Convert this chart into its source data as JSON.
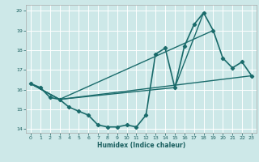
{
  "xlabel": "Humidex (Indice chaleur)",
  "ylabel": "",
  "xlim": [
    -0.5,
    23.5
  ],
  "ylim": [
    13.8,
    20.3
  ],
  "yticks": [
    14,
    15,
    16,
    17,
    18,
    19,
    20
  ],
  "xticks": [
    0,
    1,
    2,
    3,
    4,
    5,
    6,
    7,
    8,
    9,
    10,
    11,
    12,
    13,
    14,
    15,
    16,
    17,
    18,
    19,
    20,
    21,
    22,
    23
  ],
  "background_color": "#cde8e8",
  "grid_color": "#ffffff",
  "line_color": "#1a6b6b",
  "lines": [
    {
      "x": [
        0,
        1,
        2,
        3,
        4,
        5,
        6,
        7,
        8,
        9,
        10,
        11,
        12,
        13,
        14,
        15,
        16,
        17,
        18,
        19,
        20,
        21,
        22,
        23
      ],
      "y": [
        16.3,
        16.1,
        15.6,
        15.5,
        15.1,
        14.9,
        14.7,
        14.2,
        14.1,
        14.1,
        14.2,
        14.1,
        14.7,
        17.8,
        18.1,
        16.1,
        18.2,
        19.3,
        19.9,
        19.0,
        17.6,
        17.1,
        17.4,
        16.7
      ],
      "marker": "D",
      "markersize": 2.2,
      "linewidth": 1.2
    },
    {
      "x": [
        0,
        3,
        15,
        18
      ],
      "y": [
        16.3,
        15.5,
        16.1,
        19.9
      ],
      "marker": null,
      "markersize": 0,
      "linewidth": 1.0
    },
    {
      "x": [
        0,
        3,
        19
      ],
      "y": [
        16.3,
        15.5,
        19.0
      ],
      "marker": null,
      "markersize": 0,
      "linewidth": 1.0
    },
    {
      "x": [
        0,
        3,
        23
      ],
      "y": [
        16.3,
        15.5,
        16.7
      ],
      "marker": null,
      "markersize": 0,
      "linewidth": 1.0
    }
  ]
}
